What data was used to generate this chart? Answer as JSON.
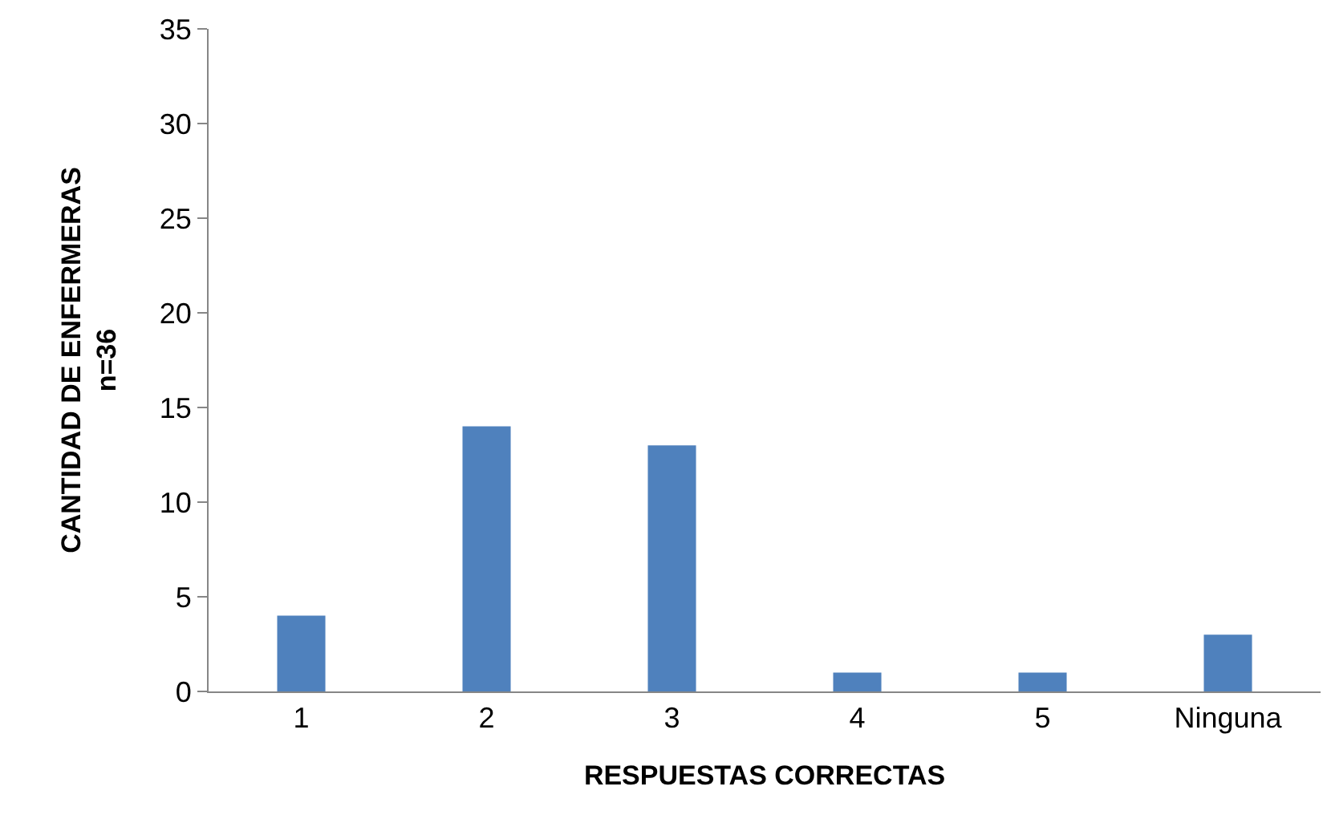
{
  "chart_data": {
    "type": "bar",
    "xlabel": "RESPUESTAS CORRECTAS",
    "ylabel": "CANTIDAD DE ENFERMERAS\nn=36",
    "categories": [
      "1",
      "2",
      "3",
      "4",
      "5",
      "Ninguna"
    ],
    "values": [
      4,
      14,
      13,
      1,
      1,
      3
    ],
    "color": "#4f81bd",
    "ylim": [
      0,
      35
    ],
    "yticks": [
      0,
      5,
      10,
      15,
      20,
      25,
      30,
      35
    ],
    "grid": false
  }
}
